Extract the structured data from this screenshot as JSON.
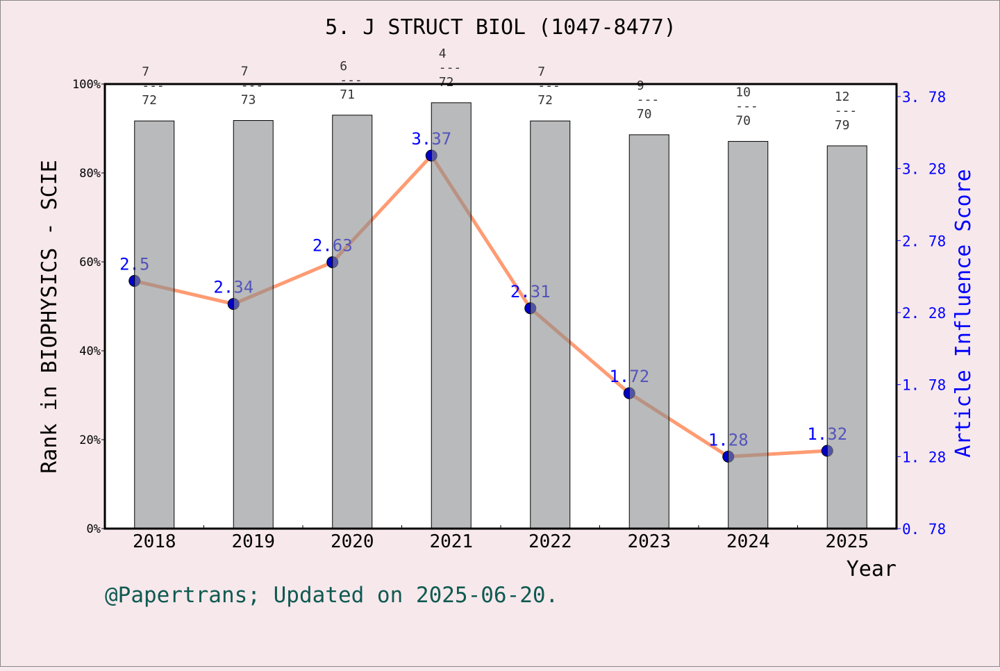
{
  "chart_data": {
    "type": "bar+line",
    "title": "5. J STRUCT BIOL (1047-8477)",
    "xlabel": "Year",
    "ylabel_left": "Rank in BIOPHYSICS - SCIE",
    "ylabel_right": "Article Influence Score",
    "categories": [
      "2018",
      "2019",
      "2020",
      "2021",
      "2022",
      "2023",
      "2024",
      "2025"
    ],
    "rank": [
      7,
      7,
      6,
      4,
      7,
      9,
      10,
      12
    ],
    "total": [
      72,
      73,
      71,
      72,
      72,
      70,
      70,
      79
    ],
    "rank_percent": [
      91.7,
      91.8,
      93.0,
      95.8,
      91.7,
      88.6,
      87.1,
      86.1
    ],
    "scores": [
      2.5,
      2.34,
      2.63,
      3.37,
      2.31,
      1.72,
      1.28,
      1.32
    ],
    "score_labels": [
      "2.5",
      "2.34",
      "2.63",
      "3.37",
      "2.31",
      "1.72",
      "1.28",
      "1.32"
    ],
    "ylim_left": [
      0,
      100
    ],
    "left_ticks": [
      "0%",
      "20%",
      "40%",
      "60%",
      "80%",
      "100%"
    ],
    "right_ticks": [
      "0.78",
      "1.28",
      "1.78",
      "2.28",
      "2.78",
      "3.28",
      "3.78"
    ],
    "ylim_right": [
      0.78,
      3.867
    ],
    "colors": {
      "bar": "#b8b9ba",
      "line": "#ff9b73",
      "point": "#0000cc",
      "right_axis": "#0000ff",
      "footer": "#0f5a50"
    }
  },
  "footer": "@Papertrans; Updated on 2025-06-20."
}
